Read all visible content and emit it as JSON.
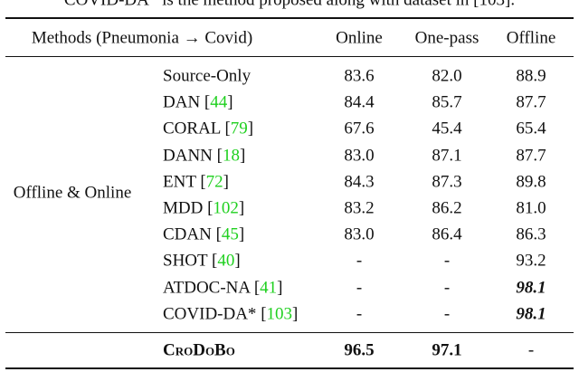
{
  "caption": "COVID-DA* is the method proposed along with dataset in [103].",
  "table": {
    "header": [
      "Methods (Pneumonia → Covid)",
      "Online",
      "One-pass",
      "Offline"
    ],
    "group": "Offline & Online",
    "rows": [
      {
        "method": "Source-Only",
        "values": [
          "83.6",
          "82.0",
          "88.9"
        ]
      },
      {
        "method": "DAN",
        "cite": "[44]",
        "values": [
          "84.4",
          "85.7",
          "87.7"
        ]
      },
      {
        "method": "CORAL",
        "cite": "[79]",
        "values": [
          "67.6",
          "45.4",
          "65.4"
        ]
      },
      {
        "method": "DANN",
        "cite": "[18]",
        "values": [
          "83.0",
          "87.1",
          "87.7"
        ]
      },
      {
        "method": "ENT",
        "cite": "[72]",
        "values": [
          "84.3",
          "87.3",
          "89.8"
        ]
      },
      {
        "method": "MDD",
        "cite": "[102]",
        "values": [
          "83.2",
          "86.2",
          "81.0"
        ]
      },
      {
        "method": "CDAN",
        "cite": "[45]",
        "values": [
          "83.0",
          "86.4",
          "86.3"
        ]
      },
      {
        "method": "SHOT",
        "cite": "[40]",
        "values": [
          "-",
          "-",
          "93.2"
        ]
      },
      {
        "method": "ATDOC-NA",
        "cite": "[41]",
        "values": [
          "-",
          "-",
          "98.1"
        ]
      },
      {
        "method": "COVID-DA*",
        "cite": "[103]",
        "values": [
          "-",
          "-",
          "98.1"
        ]
      }
    ],
    "ours": {
      "method": "CroDoBo",
      "values": [
        "96.5",
        "97.1",
        "-"
      ]
    }
  }
}
